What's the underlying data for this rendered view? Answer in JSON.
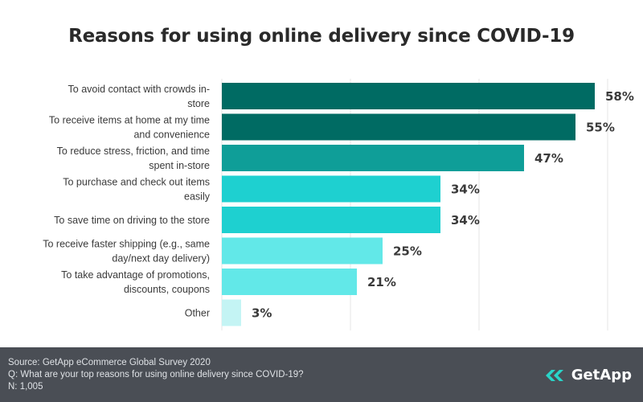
{
  "chart_data": {
    "type": "bar",
    "orientation": "horizontal",
    "title": "Reasons for using online delivery since COVID-19",
    "categories": [
      [
        "To avoid contact with crowds in-",
        "store"
      ],
      [
        "To receive items at home at my time",
        "and convenience"
      ],
      [
        "To reduce stress, friction, and time",
        "spent in-store"
      ],
      [
        "To purchase and check out items",
        "easily"
      ],
      [
        "To save time on driving to the store"
      ],
      [
        "To receive faster shipping (e.g., same",
        "day/next day delivery)"
      ],
      [
        "To take advantage of promotions,",
        "discounts, coupons"
      ],
      [
        "Other"
      ]
    ],
    "values": [
      58,
      55,
      47,
      34,
      34,
      25,
      21,
      3
    ],
    "value_labels": [
      "58%",
      "55%",
      "47%",
      "34%",
      "34%",
      "25%",
      "21%",
      "3%"
    ],
    "bar_colors": [
      "#006b63",
      "#006b63",
      "#0f9e98",
      "#1ed0d0",
      "#1ed0d0",
      "#62e8e8",
      "#62e8e8",
      "#c4f4f4"
    ],
    "xlim": [
      0,
      60
    ],
    "grid": true
  },
  "footer": {
    "source": "Source: GetApp eCommerce Global Survey 2020",
    "question": "Q: What are your top reasons for using online delivery since COVID-19?",
    "n": "N: 1,005"
  },
  "logo": {
    "text": "GetApp",
    "icon": "getapp-chevron-icon",
    "color": "#2ad4c8"
  }
}
